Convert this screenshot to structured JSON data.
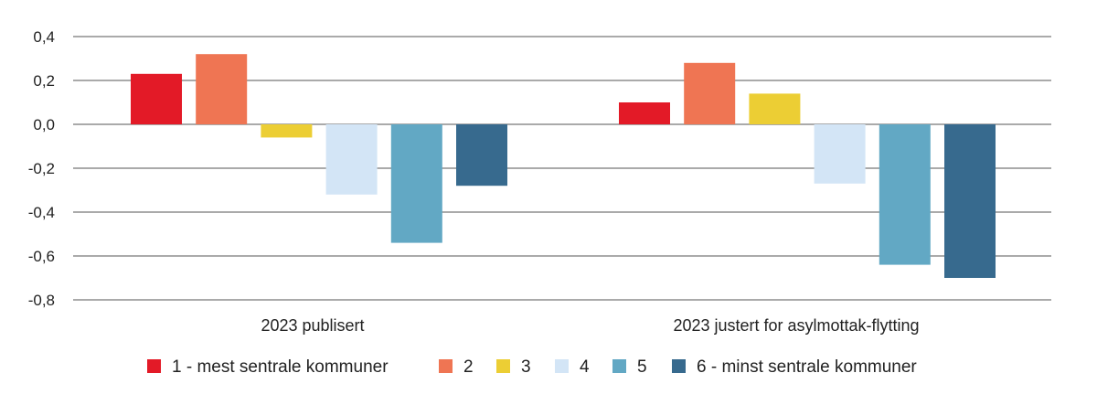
{
  "chart_data": {
    "type": "bar",
    "title": "",
    "xlabel": "",
    "ylabel": "",
    "categories": [
      "2023 publisert",
      "2023 justert for asylmottak-flytting"
    ],
    "series": [
      {
        "name": "1 - mest sentrale kommuner",
        "color": "#e31a27",
        "values": [
          0.23,
          0.1
        ]
      },
      {
        "name": "2",
        "color": "#ef7553",
        "values": [
          0.32,
          0.28
        ]
      },
      {
        "name": "3",
        "color": "#ecce34",
        "values": [
          -0.06,
          0.14
        ]
      },
      {
        "name": "4",
        "color": "#d3e5f6",
        "values": [
          -0.32,
          -0.27
        ]
      },
      {
        "name": "5",
        "color": "#62a8c4",
        "values": [
          -0.54,
          -0.64
        ]
      },
      {
        "name": "6 - minst sentrale kommuner",
        "color": "#376a8e",
        "values": [
          -0.28,
          -0.7
        ]
      }
    ],
    "ylim": [
      -0.8,
      0.4
    ],
    "yticks": [
      0.4,
      0.2,
      0.0,
      -0.2,
      -0.4,
      -0.6,
      -0.8
    ],
    "ytick_labels": [
      "0,4",
      "0,2",
      "0,0",
      "-0,2",
      "-0,4",
      "-0,6",
      "-0,8"
    ],
    "grid": true,
    "legend_position": "bottom"
  }
}
